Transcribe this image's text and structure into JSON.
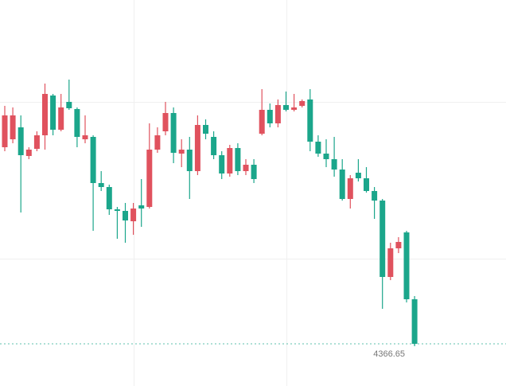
{
  "chart_data": {
    "type": "candlestick",
    "open": [
      4490.15,
      4495.15,
      4502.65,
      4484.65,
      4489.15,
      4497.65,
      4522.65,
      4501.15,
      4518.65,
      4514.15,
      4495.15,
      4496.65,
      4467.65,
      4465.15,
      4451.15,
      4450.15,
      4443.65,
      4453.65,
      4452.65,
      4488.65,
      4500.15,
      4511.65,
      4486.15,
      4488.65,
      4475.15,
      4504.15,
      4496.65,
      4485.15,
      4473.65,
      4489.65,
      4475.15,
      4479.15,
      4498.65,
      4513.65,
      4505.15,
      4516.65,
      4513.65,
      4516.15,
      4520.15,
      4493.65,
      4486.15,
      4482.65,
      4476.15,
      4457.65,
      4474.15,
      4470.65,
      4462.65,
      4456.65,
      4408.65,
      4426.65,
      4436.65,
      4394.65
    ],
    "high": [
      4516.15,
      4515.15,
      4510.15,
      4490.15,
      4500.15,
      4530.15,
      4523.65,
      4523.65,
      4532.65,
      4515.15,
      4510.15,
      4497.65,
      4475.15,
      4466.65,
      4452.65,
      4455.15,
      4455.15,
      4470.15,
      4505.15,
      4502.65,
      4518.65,
      4515.15,
      4495.15,
      4496.65,
      4510.15,
      4507.65,
      4500.15,
      4487.65,
      4491.65,
      4492.65,
      4482.65,
      4482.65,
      4526.65,
      4517.65,
      4520.15,
      4525.15,
      4523.65,
      4520.15,
      4526.65,
      4497.65,
      4495.15,
      4496.65,
      4482.65,
      4472.65,
      4482.65,
      4477.65,
      4465.15,
      4457.65,
      4430.15,
      4433.65,
      4437.65,
      4396.65
    ],
    "low": [
      4487.65,
      4492.65,
      4449.15,
      4482.65,
      4487.65,
      4488.65,
      4497.65,
      4500.15,
      4513.65,
      4490.15,
      4492.65,
      4437.65,
      4462.65,
      4447.65,
      4432.65,
      4430.15,
      4435.15,
      4440.15,
      4451.65,
      4486.65,
      4497.65,
      4480.15,
      4477.65,
      4457.65,
      4472.65,
      4495.15,
      4482.65,
      4470.15,
      4471.65,
      4472.65,
      4472.65,
      4467.65,
      4497.65,
      4502.65,
      4502.65,
      4512.65,
      4512.65,
      4515.15,
      4487.65,
      4484.15,
      4477.65,
      4471.65,
      4456.65,
      4451.65,
      4468.65,
      4461.65,
      4445.15,
      4388.65,
      4406.65,
      4423.65,
      4392.65,
      4365.15
    ],
    "close": [
      4510.15,
      4510.15,
      4485.15,
      4488.65,
      4497.65,
      4523.65,
      4501.15,
      4515.15,
      4514.65,
      4496.65,
      4497.65,
      4467.65,
      4465.15,
      4451.15,
      4450.15,
      4444.15,
      4451.65,
      4451.65,
      4488.65,
      4497.65,
      4511.65,
      4486.65,
      4488.65,
      4475.15,
      4504.15,
      4498.65,
      4485.15,
      4473.65,
      4489.65,
      4475.15,
      4479.15,
      4470.15,
      4513.65,
      4505.15,
      4516.65,
      4513.65,
      4515.15,
      4519.15,
      4493.65,
      4486.15,
      4482.65,
      4476.15,
      4457.65,
      4470.65,
      4470.65,
      4462.65,
      4456.65,
      4408.65,
      4426.65,
      4430.65,
      4394.65,
      4366.65
    ],
    "up_color": "#e0525e",
    "down_color": "#1ba68b",
    "last_price": 4366.65,
    "ylim": [
      4340.15,
      4582.65
    ]
  }
}
